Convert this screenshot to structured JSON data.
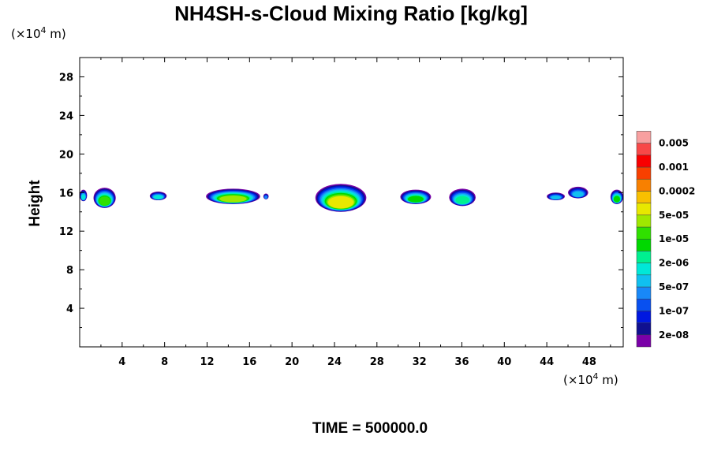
{
  "chart_data": {
    "type": "heatmap",
    "title": "NH4SH-s-Cloud Mixing Ratio [kg/kg]",
    "xlabel": "",
    "ylabel": "Height",
    "x_unit": {
      "base": "(×10",
      "exp": "4",
      "suffix": " m)"
    },
    "y_unit": {
      "base": "(×10",
      "exp": "4",
      "suffix": " m)"
    },
    "xlim": [
      0,
      51.2
    ],
    "ylim": [
      0,
      30
    ],
    "x_ticks": [
      "4",
      "8",
      "12",
      "16",
      "20",
      "24",
      "28",
      "32",
      "36",
      "40",
      "44",
      "48"
    ],
    "y_ticks": [
      "4",
      "8",
      "12",
      "16",
      "20",
      "24",
      "28"
    ],
    "footer": "TIME = 500000.0",
    "colorbar": {
      "colors": [
        "#7a00a8",
        "#101090",
        "#0018e0",
        "#0850f0",
        "#1888f8",
        "#10c0f0",
        "#00e8d8",
        "#00f090",
        "#00d800",
        "#30e000",
        "#a0e800",
        "#e8e800",
        "#f8c000",
        "#f88000",
        "#f84000",
        "#f80000",
        "#f84848",
        "#f8a0a0"
      ],
      "labels": [
        "2e-08",
        "1e-07",
        "5e-07",
        "2e-06",
        "1e-05",
        "5e-05",
        "0.0002",
        "0.001",
        "0.005"
      ]
    },
    "clouds": [
      {
        "x0": 0.0,
        "x1": 0.7,
        "top": 16.3,
        "bottom": 15.1,
        "max_level": 6
      },
      {
        "x0": 1.3,
        "x1": 3.4,
        "top": 16.5,
        "bottom": 14.4,
        "max_level": 9
      },
      {
        "x0": 6.6,
        "x1": 8.2,
        "top": 16.1,
        "bottom": 15.2,
        "max_level": 6
      },
      {
        "x0": 11.9,
        "x1": 17.0,
        "top": 16.4,
        "bottom": 14.8,
        "max_level": 10
      },
      {
        "x0": 17.3,
        "x1": 17.8,
        "top": 15.9,
        "bottom": 15.3,
        "max_level": 4
      },
      {
        "x0": 22.2,
        "x1": 27.0,
        "top": 16.9,
        "bottom": 14.0,
        "max_level": 11
      },
      {
        "x0": 30.2,
        "x1": 33.1,
        "top": 16.3,
        "bottom": 14.8,
        "max_level": 8
      },
      {
        "x0": 34.8,
        "x1": 37.3,
        "top": 16.4,
        "bottom": 14.6,
        "max_level": 7
      },
      {
        "x0": 44.0,
        "x1": 45.7,
        "top": 16.0,
        "bottom": 15.2,
        "max_level": 5
      },
      {
        "x0": 46.0,
        "x1": 47.9,
        "top": 16.6,
        "bottom": 15.4,
        "max_level": 5
      },
      {
        "x0": 50.0,
        "x1": 51.2,
        "top": 16.3,
        "bottom": 14.8,
        "max_level": 8
      }
    ]
  }
}
